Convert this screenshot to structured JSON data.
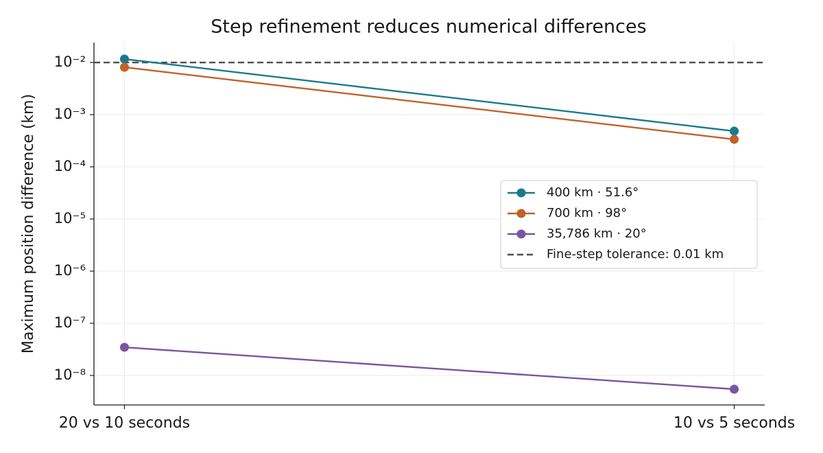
{
  "chart_data": {
    "type": "line",
    "title": "Step refinement reduces numerical differences",
    "y_label": "Maximum position difference (km)",
    "categories": [
      "20 vs 10 seconds",
      "10 vs 5 seconds"
    ],
    "series": [
      {
        "name": "400 km · 51.6°",
        "color": "#1a7a8c",
        "values": [
          0.01164,
          0.000483
        ]
      },
      {
        "name": "700 km · 98°",
        "color": "#c0622b",
        "values": [
          0.0081,
          0.000336
        ]
      },
      {
        "name": "35,786 km · 20°",
        "color": "#7a55a0",
        "values": [
          3.47e-08,
          5.46e-09
        ]
      }
    ],
    "reference_line": {
      "value": 0.01,
      "label": "Fine-step tolerance: 0.01 km",
      "color": "#4d4d4d"
    },
    "y_scale": "log",
    "ylim": [
      2.72e-09,
      0.0241
    ],
    "yticks": [
      {
        "value": 1e-08,
        "label": "10⁻⁸"
      },
      {
        "value": 1e-07,
        "label": "10⁻⁷"
      },
      {
        "value": 1e-06,
        "label": "10⁻⁶"
      },
      {
        "value": 1e-05,
        "label": "10⁻⁵"
      },
      {
        "value": 0.0001,
        "label": "10⁻⁴"
      },
      {
        "value": 0.001,
        "label": "10⁻³"
      },
      {
        "value": 0.01,
        "label": "10⁻²"
      }
    ],
    "grid": true,
    "legend": "right"
  }
}
